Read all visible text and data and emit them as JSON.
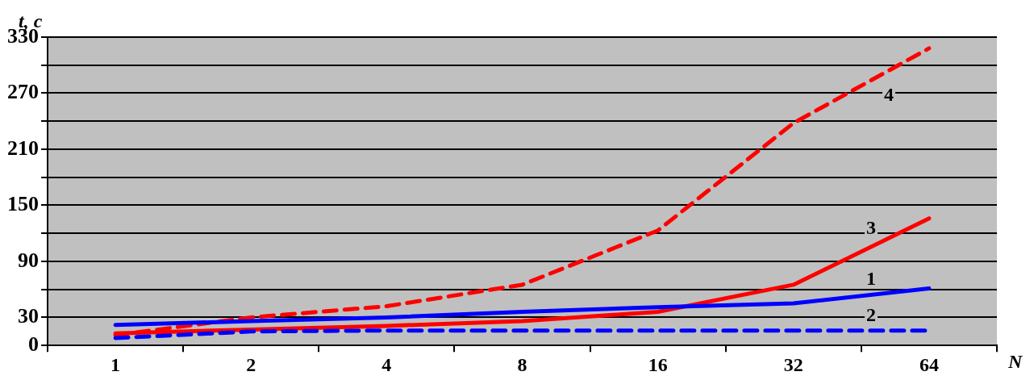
{
  "chart_data": {
    "type": "line",
    "xlabel": "N",
    "ylabel": "t, c",
    "categories": [
      "1",
      "2",
      "4",
      "8",
      "16",
      "32",
      "64"
    ],
    "series": [
      {
        "color": "#0000ff",
        "line_style": "solid",
        "values": [
          22,
          26,
          30,
          36,
          41,
          45,
          61
        ]
      },
      {
        "color": "#0000ff",
        "line_style": "dashed",
        "values": [
          8,
          15,
          16,
          16,
          16,
          16,
          16
        ]
      },
      {
        "color": "#ff0000",
        "line_style": "solid",
        "values": [
          13,
          17,
          21,
          26,
          36,
          65,
          136
        ]
      },
      {
        "color": "#ff0000",
        "line_style": "dashed",
        "values": [
          11,
          30,
          42,
          65,
          123,
          238,
          318
        ]
      }
    ],
    "annotations": [
      "1",
      "2",
      "3",
      "4"
    ],
    "ylim": [
      0,
      330
    ],
    "yticks": [
      0,
      30,
      {
        "value": 60,
        "label": null
      },
      90,
      {
        "value": 120,
        "label": null
      },
      150,
      {
        "value": 180,
        "label": null
      },
      210,
      {
        "value": 240,
        "label": null
      },
      270,
      {
        "value": 300,
        "label": null
      },
      330
    ],
    "grid": "y",
    "legend": false,
    "marker": "none"
  }
}
